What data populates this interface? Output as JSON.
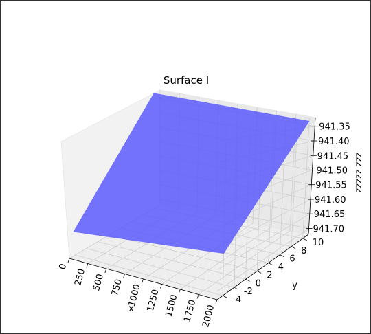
{
  "chart_data": {
    "type": "surface",
    "title": "Surface I",
    "xlabel": "x",
    "ylabel": "y",
    "zlabel": "zzzzz zzz",
    "xlim": [
      0,
      2000
    ],
    "ylim": [
      -5,
      11
    ],
    "zlim": [
      941.32,
      941.72
    ],
    "z_inverted": true,
    "x_ticks": [
      "0",
      "250",
      "500",
      "750",
      "1000",
      "1250",
      "1500",
      "1750",
      "2000"
    ],
    "y_ticks": [
      "-4",
      "-2",
      "0",
      "2",
      "4",
      "6",
      "8",
      "10"
    ],
    "z_ticks": [
      "941.35",
      "941.40",
      "941.45",
      "941.50",
      "941.55",
      "941.60",
      "941.65",
      "941.70"
    ],
    "surface_color": "#5555ff",
    "grid": true,
    "corners": [
      {
        "x": 0,
        "y": -4,
        "z": 941.64
      },
      {
        "x": 2000,
        "y": -4,
        "z": 941.62
      },
      {
        "x": 2000,
        "y": 10,
        "z": 941.33
      },
      {
        "x": 0,
        "y": 10,
        "z": 941.32
      }
    ]
  }
}
